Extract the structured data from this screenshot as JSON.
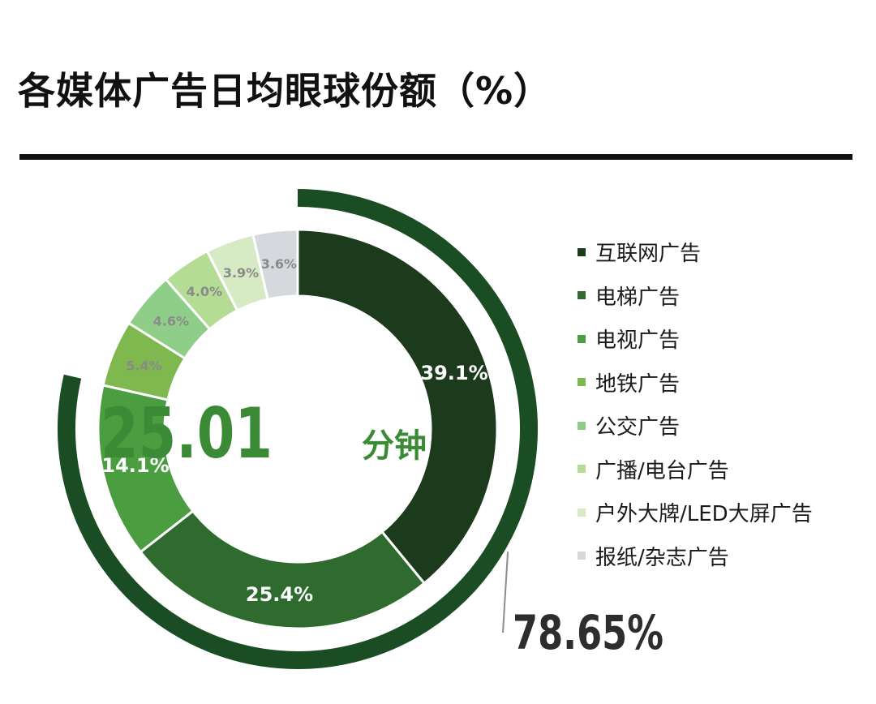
{
  "title": "各媒体广告日均眼球份额（%）",
  "center_value": "25.01",
  "center_unit": "分钟",
  "outer_ring_label": "78.65%",
  "chart_data": {
    "type": "pie",
    "title": "各媒体广告日均眼球份额（%）",
    "donut": true,
    "categories": [
      "互联网广告",
      "电梯广告",
      "电视广告",
      "地铁广告",
      "公交广告",
      "广播/电台广告",
      "户外大牌/LED大屏广告",
      "报纸/杂志广告"
    ],
    "values": [
      39.1,
      25.4,
      14.1,
      5.4,
      4.6,
      4.0,
      3.9,
      3.6
    ],
    "labels": [
      "39.1%",
      "25.4%",
      "14.1%",
      "5.4%",
      "4.6%",
      "4.0%",
      "3.9%",
      "3.6%"
    ],
    "colors": [
      "#1c3a1c",
      "#2f6b2f",
      "#4a9e40",
      "#7fb84f",
      "#8fce88",
      "#b5dc95",
      "#d6ebc4",
      "#d5d8dc"
    ],
    "label_colors": [
      "#ffffff",
      "#ffffff",
      "#ffffff",
      "#8a8a8a",
      "#8a8a8a",
      "#8a8a8a",
      "#8a8a8a",
      "#8a8a8a"
    ],
    "outer_ring": {
      "value_percent": 78.65,
      "label": "78.65%",
      "color": "#1b4d25"
    },
    "legend_position": "right"
  }
}
